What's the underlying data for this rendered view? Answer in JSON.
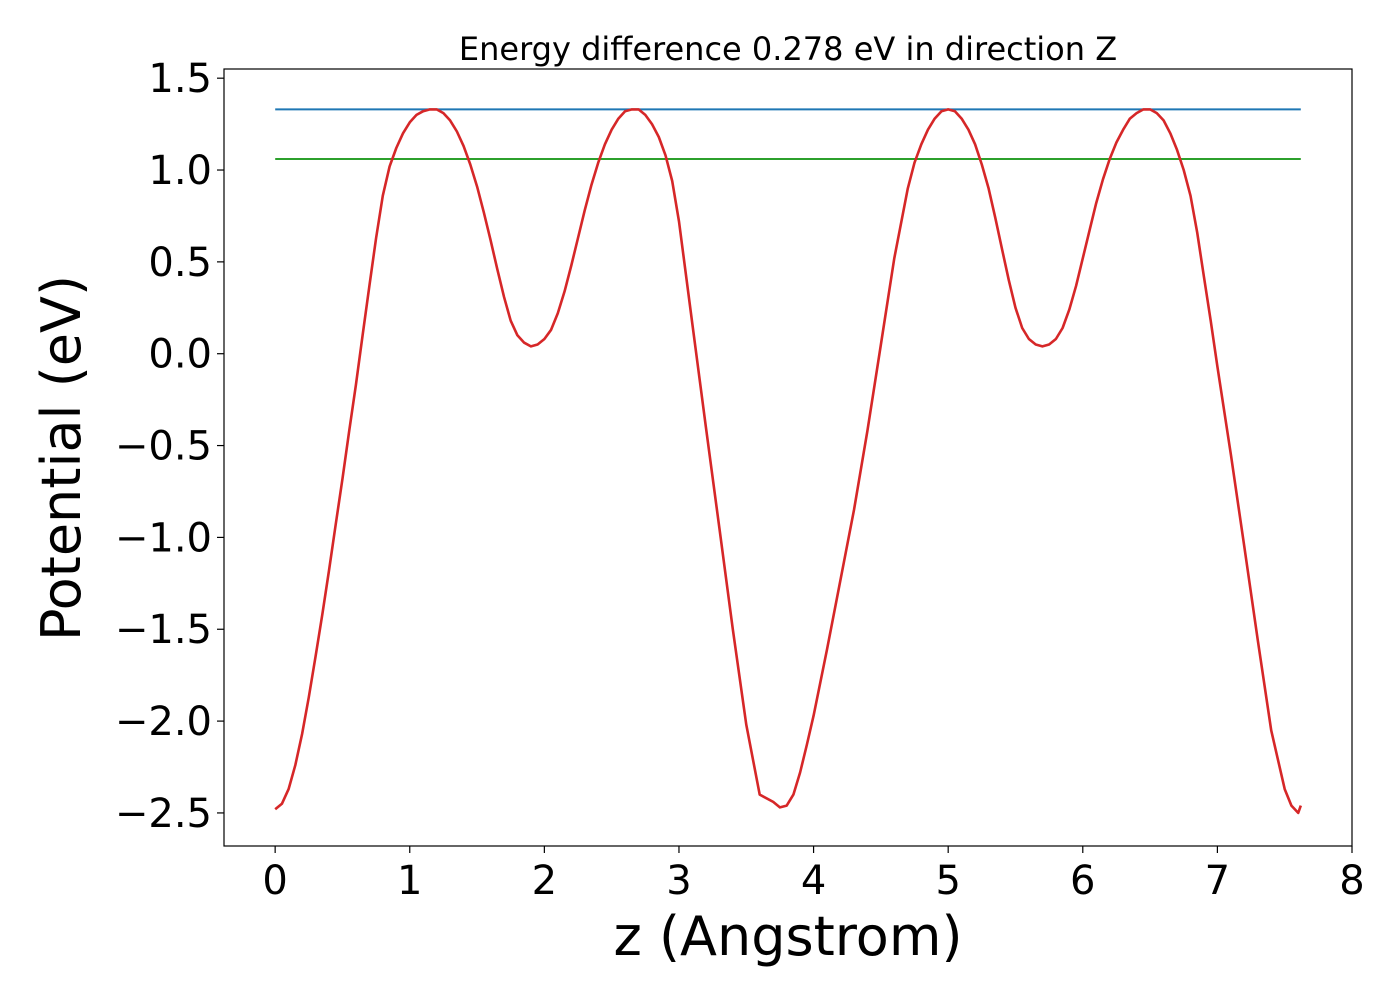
{
  "chart_data": {
    "type": "line",
    "title": "Energy difference 0.278 eV in direction Z",
    "xlabel": "z (Angstrom)",
    "ylabel": "Potential (eV)",
    "xlim": [
      -0.38,
      8.0
    ],
    "ylim": [
      -2.68,
      1.55
    ],
    "xticks": [
      0,
      1,
      2,
      3,
      4,
      5,
      6,
      7,
      8
    ],
    "xtick_labels": [
      "0",
      "1",
      "2",
      "3",
      "4",
      "5",
      "6",
      "7",
      "8"
    ],
    "yticks": [
      1.5,
      1.0,
      0.5,
      0.0,
      -0.5,
      -1.0,
      -1.5,
      -2.0,
      -2.5
    ],
    "ytick_labels": [
      "1.5",
      "1.0",
      "0.5",
      "0.0",
      "−0.5",
      "−1.0",
      "−1.5",
      "−2.0",
      "−2.5"
    ],
    "grid": false,
    "series": [
      {
        "color": "#d62728",
        "x": [
          0.0,
          0.05,
          0.1,
          0.15,
          0.2,
          0.25,
          0.3,
          0.35,
          0.4,
          0.45,
          0.5,
          0.55,
          0.6,
          0.65,
          0.7,
          0.75,
          0.8,
          0.85,
          0.9,
          0.95,
          1.0,
          1.05,
          1.1,
          1.15,
          1.2,
          1.25,
          1.3,
          1.35,
          1.4,
          1.45,
          1.5,
          1.55,
          1.6,
          1.65,
          1.7,
          1.75,
          1.8,
          1.85,
          1.9,
          1.95,
          2.0,
          2.05,
          2.1,
          2.15,
          2.2,
          2.25,
          2.3,
          2.35,
          2.4,
          2.45,
          2.5,
          2.55,
          2.6,
          2.65,
          2.7,
          2.75,
          2.8,
          2.85,
          2.9,
          2.95,
          3.0,
          3.1,
          3.2,
          3.3,
          3.4,
          3.5,
          3.6,
          3.7,
          3.75,
          3.8,
          3.85,
          3.9,
          3.95,
          4.0,
          4.1,
          4.2,
          4.3,
          4.4,
          4.5,
          4.6,
          4.7,
          4.75,
          4.8,
          4.85,
          4.9,
          4.95,
          5.0,
          5.05,
          5.1,
          5.15,
          5.2,
          5.25,
          5.3,
          5.35,
          5.4,
          5.45,
          5.5,
          5.55,
          5.6,
          5.65,
          5.7,
          5.75,
          5.8,
          5.85,
          5.9,
          5.95,
          6.0,
          6.05,
          6.1,
          6.15,
          6.2,
          6.25,
          6.3,
          6.35,
          6.4,
          6.45,
          6.5,
          6.55,
          6.6,
          6.65,
          6.7,
          6.75,
          6.8,
          6.85,
          6.9,
          6.95,
          7.0,
          7.1,
          7.2,
          7.3,
          7.4,
          7.5,
          7.55,
          7.6,
          7.62
        ],
        "y": [
          -2.48,
          -2.45,
          -2.37,
          -2.24,
          -2.07,
          -1.87,
          -1.65,
          -1.42,
          -1.18,
          -0.93,
          -0.68,
          -0.42,
          -0.17,
          0.1,
          0.37,
          0.63,
          0.86,
          1.02,
          1.12,
          1.2,
          1.26,
          1.3,
          1.32,
          1.33,
          1.33,
          1.31,
          1.27,
          1.21,
          1.13,
          1.03,
          0.91,
          0.77,
          0.62,
          0.46,
          0.31,
          0.18,
          0.1,
          0.06,
          0.04,
          0.05,
          0.08,
          0.13,
          0.22,
          0.34,
          0.48,
          0.63,
          0.78,
          0.92,
          1.04,
          1.14,
          1.22,
          1.28,
          1.32,
          1.33,
          1.33,
          1.3,
          1.25,
          1.18,
          1.08,
          0.94,
          0.72,
          0.16,
          -0.4,
          -0.95,
          -1.5,
          -2.02,
          -2.4,
          -2.44,
          -2.47,
          -2.46,
          -2.4,
          -2.28,
          -2.13,
          -1.97,
          -1.61,
          -1.23,
          -0.85,
          -0.42,
          0.05,
          0.52,
          0.9,
          1.04,
          1.14,
          1.22,
          1.28,
          1.32,
          1.33,
          1.32,
          1.28,
          1.22,
          1.14,
          1.03,
          0.9,
          0.74,
          0.57,
          0.4,
          0.25,
          0.14,
          0.08,
          0.05,
          0.04,
          0.05,
          0.08,
          0.14,
          0.24,
          0.37,
          0.52,
          0.67,
          0.82,
          0.95,
          1.06,
          1.15,
          1.22,
          1.28,
          1.31,
          1.33,
          1.33,
          1.31,
          1.27,
          1.2,
          1.11,
          1.0,
          0.86,
          0.66,
          0.42,
          0.18,
          -0.07,
          -0.55,
          -1.05,
          -1.56,
          -2.05,
          -2.37,
          -2.46,
          -2.5,
          -2.46
        ]
      },
      {
        "color": "#1f77b4",
        "x": [
          0.0,
          7.62
        ],
        "y": [
          1.33,
          1.33
        ]
      },
      {
        "color": "#2ca02c",
        "x": [
          0.0,
          7.62
        ],
        "y": [
          1.06,
          1.06
        ]
      }
    ]
  }
}
